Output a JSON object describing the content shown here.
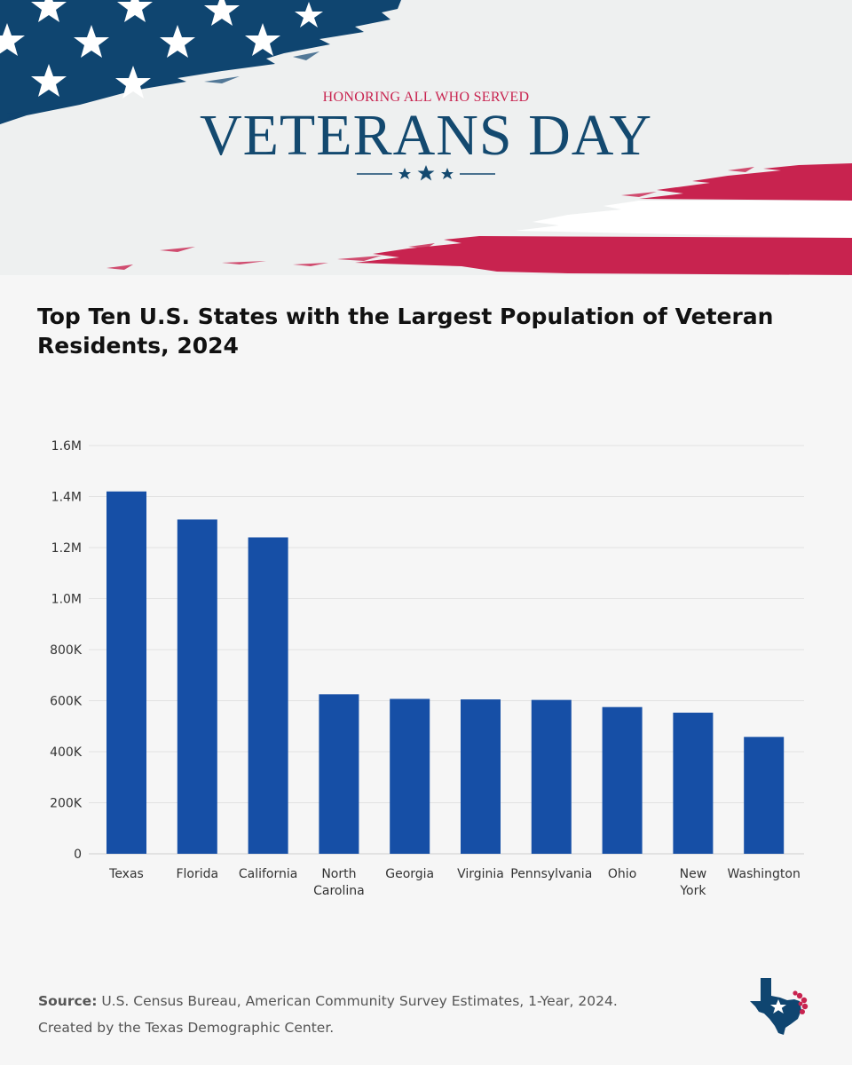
{
  "banner": {
    "subtitle": "HONORING ALL WHO SERVED",
    "title": "VETERANS DAY"
  },
  "colors": {
    "bar": "#164fa6",
    "flag_blue": "#0f4570",
    "flag_red": "#c8234f",
    "banner_title": "#13496f"
  },
  "chart_data": {
    "type": "bar",
    "title": "Top Ten U.S. States with the Largest Population of Veteran Residents, 2024",
    "categories": [
      "Texas",
      "Florida",
      "California",
      "North Carolina",
      "Georgia",
      "Virginia",
      "Pennsylvania",
      "Ohio",
      "New York",
      "Washington"
    ],
    "category_lines": [
      [
        "Texas"
      ],
      [
        "Florida"
      ],
      [
        "California"
      ],
      [
        "North",
        "Carolina"
      ],
      [
        "Georgia"
      ],
      [
        "Virginia"
      ],
      [
        "Pennsylvania"
      ],
      [
        "Ohio"
      ],
      [
        "New",
        "York"
      ],
      [
        "Washington"
      ]
    ],
    "values": [
      1420000,
      1310000,
      1240000,
      625000,
      607000,
      605000,
      603000,
      575000,
      553000,
      458000
    ],
    "yticks": [
      0,
      200000,
      400000,
      600000,
      800000,
      1000000,
      1200000,
      1400000,
      1600000
    ],
    "ytick_labels": [
      "0",
      "200K",
      "400K",
      "600K",
      "800K",
      "1.0M",
      "1.2M",
      "1.4M",
      "1.6M"
    ],
    "ylim": [
      0,
      1600000
    ],
    "grid": true,
    "xlabel": "",
    "ylabel": ""
  },
  "source": {
    "label": "Source:",
    "text": " U.S. Census Bureau, American Community Survey Estimates, 1-Year, 2024.",
    "credit": "Created by the Texas Demographic Center."
  },
  "logo": {
    "icon": "texas-map-star-icon"
  }
}
